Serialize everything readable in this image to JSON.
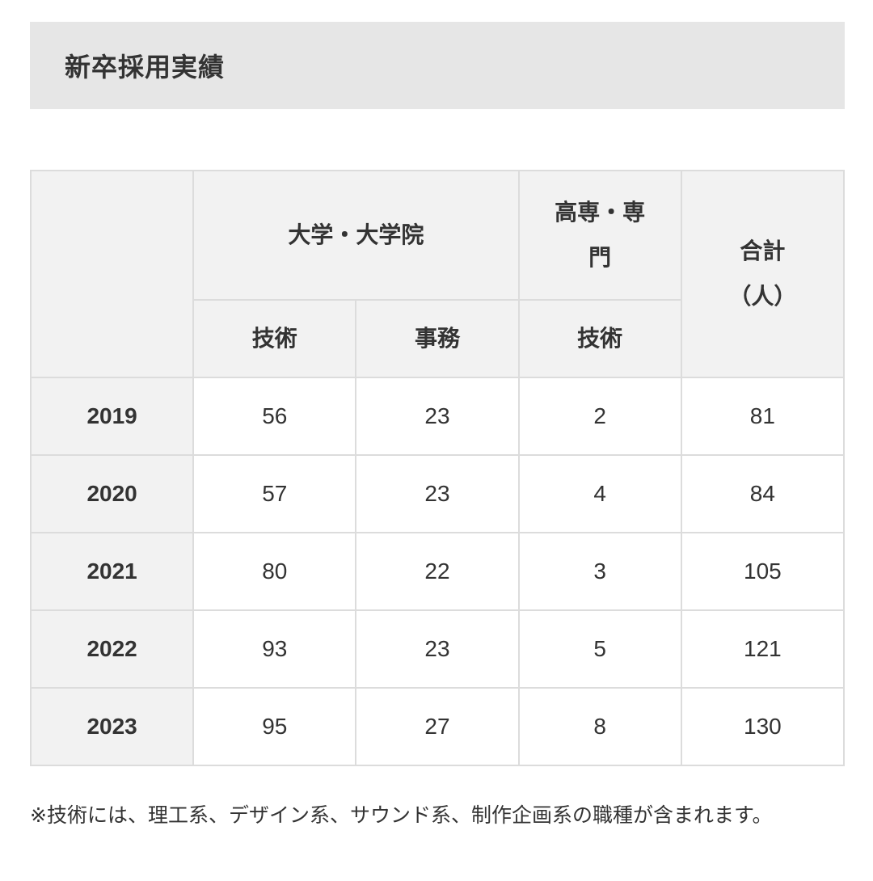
{
  "title": "新卒採用実績",
  "table": {
    "group_headers": [
      "大学・大学院",
      "高専・専門",
      "合計\n（人）"
    ],
    "sub_headers": [
      "技術",
      "事務",
      "技術"
    ],
    "rows": [
      {
        "year": "2019",
        "values": [
          "56",
          "23",
          "2",
          "81"
        ]
      },
      {
        "year": "2020",
        "values": [
          "57",
          "23",
          "4",
          "84"
        ]
      },
      {
        "year": "2021",
        "values": [
          "80",
          "22",
          "3",
          "105"
        ]
      },
      {
        "year": "2022",
        "values": [
          "93",
          "23",
          "5",
          "121"
        ]
      },
      {
        "year": "2023",
        "values": [
          "95",
          "27",
          "8",
          "130"
        ]
      }
    ]
  },
  "total_label_line1": "合計",
  "total_label_line2": "（人）",
  "kosen_line1": "高専・専",
  "kosen_line2": "門",
  "footnote": "※技術には、理工系、デザイン系、サウンド系、制作企画系の職種が含まれます。"
}
